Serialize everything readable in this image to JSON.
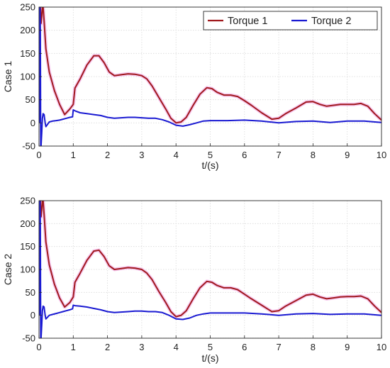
{
  "chart_data": [
    {
      "type": "line",
      "xlabel": "t/(s)",
      "ylabel": "Case 1",
      "xlim": [
        0,
        10
      ],
      "ylim": [
        -50,
        250
      ],
      "xticks": [
        "0",
        "1",
        "2",
        "3",
        "4",
        "5",
        "6",
        "7",
        "8",
        "9",
        "10"
      ],
      "yticks": [
        "-50",
        "0",
        "50",
        "100",
        "150",
        "200",
        "250"
      ],
      "grid": true,
      "legend_position": "top-right",
      "series": [
        {
          "name": "Torque 1",
          "color": "#a0191d",
          "x": [
            0.04,
            0.05,
            0.06,
            0.08,
            0.1,
            0.12,
            0.15,
            0.2,
            0.3,
            0.45,
            0.6,
            0.75,
            0.9,
            1.0,
            1.05,
            1.2,
            1.4,
            1.6,
            1.75,
            1.9,
            2.05,
            2.2,
            2.4,
            2.6,
            2.8,
            3.0,
            3.15,
            3.3,
            3.5,
            3.7,
            3.85,
            4.0,
            4.15,
            4.3,
            4.5,
            4.7,
            4.9,
            5.05,
            5.2,
            5.4,
            5.6,
            5.8,
            6.0,
            6.2,
            6.5,
            6.8,
            7.0,
            7.2,
            7.5,
            7.8,
            8.0,
            8.2,
            8.4,
            8.6,
            8.8,
            9.0,
            9.2,
            9.4,
            9.6,
            9.8,
            10.0
          ],
          "y": [
            250,
            230,
            215,
            230,
            250,
            250,
            220,
            160,
            110,
            70,
            40,
            18,
            30,
            40,
            75,
            95,
            125,
            145,
            145,
            130,
            110,
            102,
            104,
            106,
            105,
            102,
            95,
            80,
            55,
            30,
            10,
            0,
            2,
            12,
            38,
            62,
            76,
            74,
            66,
            60,
            60,
            57,
            48,
            38,
            22,
            8,
            10,
            20,
            32,
            45,
            46,
            40,
            36,
            38,
            40,
            40,
            40,
            42,
            36,
            20,
            6
          ]
        },
        {
          "name": "Torque 2",
          "color": "#1a1ad2",
          "x": [
            0.0,
            0.02,
            0.03,
            0.04,
            0.05,
            0.06,
            0.08,
            0.1,
            0.12,
            0.15,
            0.18,
            0.2,
            0.25,
            0.3,
            0.4,
            0.5,
            0.6,
            0.7,
            0.8,
            0.9,
            0.98,
            1.0,
            1.05,
            1.2,
            1.4,
            1.6,
            1.8,
            2.0,
            2.2,
            2.4,
            2.6,
            2.8,
            3.0,
            3.2,
            3.4,
            3.6,
            3.8,
            4.0,
            4.2,
            4.4,
            4.6,
            4.8,
            5.0,
            5.5,
            6.0,
            6.5,
            7.0,
            7.5,
            8.0,
            8.5,
            9.0,
            9.5,
            10.0
          ],
          "y": [
            0,
            10,
            250,
            200,
            -50,
            -50,
            -20,
            10,
            20,
            18,
            0,
            -8,
            -3,
            2,
            4,
            5,
            6,
            8,
            10,
            12,
            13,
            28,
            26,
            22,
            20,
            18,
            16,
            12,
            10,
            11,
            12,
            12,
            11,
            10,
            10,
            7,
            2,
            -5,
            -7,
            -4,
            0,
            4,
            5,
            5,
            6,
            4,
            0,
            3,
            4,
            1,
            4,
            4,
            1
          ]
        }
      ]
    },
    {
      "type": "line",
      "xlabel": "t/(s)",
      "ylabel": "Case 2",
      "xlim": [
        0,
        10
      ],
      "ylim": [
        -50,
        250
      ],
      "xticks": [
        "0",
        "1",
        "2",
        "3",
        "4",
        "5",
        "6",
        "7",
        "8",
        "9",
        "10"
      ],
      "yticks": [
        "-50",
        "0",
        "50",
        "100",
        "150",
        "200",
        "250"
      ],
      "grid": true,
      "series": [
        {
          "name": "Torque 1",
          "color": "#a0191d",
          "x": [
            0.04,
            0.05,
            0.06,
            0.08,
            0.1,
            0.12,
            0.15,
            0.2,
            0.3,
            0.45,
            0.6,
            0.75,
            0.9,
            1.0,
            1.05,
            1.2,
            1.4,
            1.6,
            1.75,
            1.9,
            2.05,
            2.2,
            2.4,
            2.6,
            2.8,
            3.0,
            3.15,
            3.3,
            3.5,
            3.7,
            3.85,
            4.0,
            4.15,
            4.3,
            4.5,
            4.7,
            4.9,
            5.05,
            5.2,
            5.4,
            5.6,
            5.8,
            6.0,
            6.2,
            6.5,
            6.8,
            7.0,
            7.2,
            7.5,
            7.8,
            8.0,
            8.2,
            8.4,
            8.6,
            8.8,
            9.0,
            9.2,
            9.4,
            9.6,
            9.8,
            10.0
          ],
          "y": [
            250,
            230,
            215,
            230,
            250,
            250,
            220,
            160,
            110,
            68,
            38,
            18,
            28,
            40,
            72,
            92,
            120,
            140,
            142,
            128,
            108,
            100,
            102,
            104,
            103,
            100,
            92,
            78,
            52,
            28,
            8,
            -3,
            0,
            10,
            36,
            60,
            74,
            72,
            65,
            60,
            60,
            56,
            46,
            36,
            22,
            8,
            10,
            20,
            32,
            44,
            46,
            40,
            36,
            38,
            40,
            41,
            41,
            42,
            36,
            20,
            6
          ]
        },
        {
          "name": "Torque 2",
          "color": "#1a1ad2",
          "x": [
            0.0,
            0.02,
            0.03,
            0.04,
            0.05,
            0.06,
            0.08,
            0.1,
            0.12,
            0.15,
            0.18,
            0.2,
            0.25,
            0.3,
            0.4,
            0.5,
            0.6,
            0.7,
            0.8,
            0.9,
            0.98,
            1.0,
            1.05,
            1.2,
            1.4,
            1.6,
            1.8,
            2.0,
            2.2,
            2.4,
            2.6,
            2.8,
            3.0,
            3.2,
            3.4,
            3.6,
            3.8,
            4.0,
            4.2,
            4.4,
            4.6,
            4.8,
            5.0,
            5.5,
            6.0,
            6.5,
            7.0,
            7.5,
            8.0,
            8.5,
            9.0,
            9.5,
            10.0
          ],
          "y": [
            0,
            10,
            250,
            200,
            -50,
            -50,
            -20,
            10,
            20,
            18,
            0,
            -8,
            -4,
            0,
            2,
            4,
            6,
            8,
            10,
            12,
            14,
            22,
            21,
            20,
            18,
            15,
            12,
            8,
            6,
            7,
            8,
            9,
            9,
            8,
            8,
            6,
            0,
            -8,
            -9,
            -6,
            0,
            3,
            5,
            5,
            5,
            3,
            0,
            3,
            4,
            2,
            3,
            3,
            0
          ]
        }
      ]
    }
  ]
}
